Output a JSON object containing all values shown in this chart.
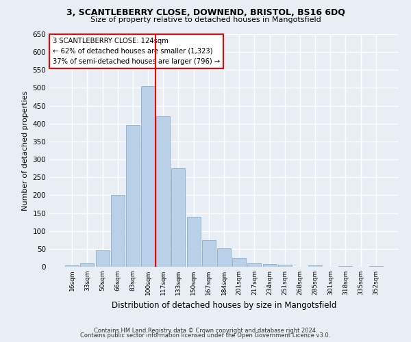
{
  "title_line1": "3, SCANTLEBERRY CLOSE, DOWNEND, BRISTOL, BS16 6DQ",
  "title_line2": "Size of property relative to detached houses in Mangotsfield",
  "xlabel": "Distribution of detached houses by size in Mangotsfield",
  "ylabel": "Number of detached properties",
  "bar_labels": [
    "16sqm",
    "33sqm",
    "50sqm",
    "66sqm",
    "83sqm",
    "100sqm",
    "117sqm",
    "133sqm",
    "150sqm",
    "167sqm",
    "184sqm",
    "201sqm",
    "217sqm",
    "234sqm",
    "251sqm",
    "268sqm",
    "285sqm",
    "301sqm",
    "318sqm",
    "335sqm",
    "352sqm"
  ],
  "bar_values": [
    4,
    10,
    45,
    200,
    395,
    505,
    420,
    275,
    140,
    75,
    52,
    25,
    10,
    7,
    5,
    0,
    4,
    0,
    2,
    0,
    1
  ],
  "bar_color": "#b8d0e8",
  "bar_edge_color": "#8aafc8",
  "annotation_title": "3 SCANTLEBERRY CLOSE: 124sqm",
  "annotation_line2": "← 62% of detached houses are smaller (1,323)",
  "annotation_line3": "37% of semi-detached houses are larger (796) →",
  "annotation_box_color": "white",
  "annotation_box_edgecolor": "red",
  "vline_color": "red",
  "ylim": [
    0,
    650
  ],
  "footer_line1": "Contains HM Land Registry data © Crown copyright and database right 2024.",
  "footer_line2": "Contains public sector information licensed under the Open Government Licence v3.0.",
  "bg_color": "#e8eef4",
  "grid_color": "white"
}
